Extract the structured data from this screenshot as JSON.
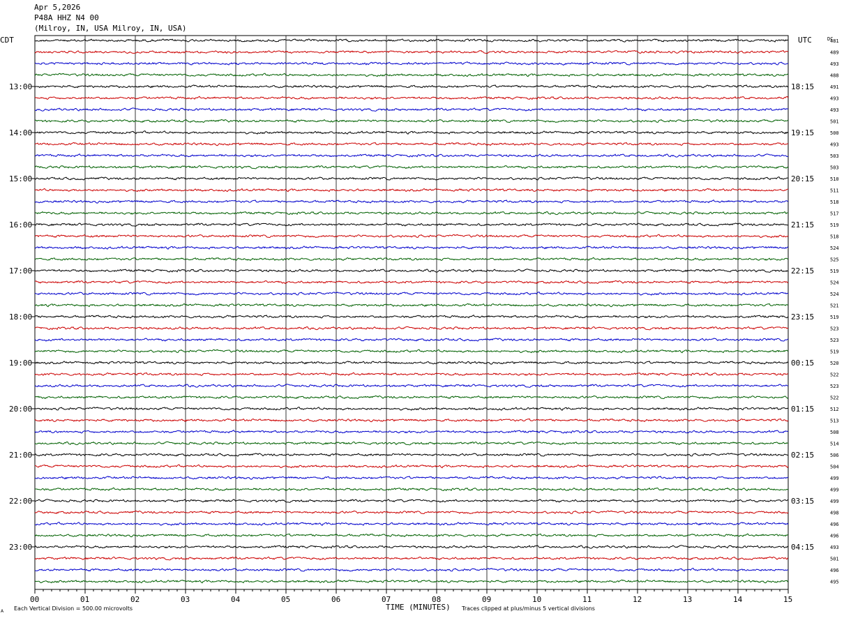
{
  "header": {
    "date": "Apr 5,2026",
    "station": "P48A HHZ N4 00",
    "location": "(Milroy, IN, USA Milroy, IN, USA)"
  },
  "left_tz": "CDT",
  "right_tz": "UTC",
  "dc_label": "DC",
  "footer": {
    "scale_text": "Each Vertical Division =  500.00 microvolts",
    "clip_text": "Traces clipped at plus/minus 5 vertical divisions",
    "corner_mark": "A"
  },
  "chart_data": {
    "type": "line",
    "title": "",
    "xlabel": "TIME (MINUTES)",
    "xlim": [
      0,
      15
    ],
    "x_ticks": [
      "00",
      "01",
      "02",
      "03",
      "04",
      "05",
      "06",
      "07",
      "08",
      "09",
      "10",
      "11",
      "12",
      "13",
      "14",
      "15"
    ],
    "trace_interval_minutes": 15,
    "trace_colors": [
      "#000000",
      "#cc0000",
      "#0000cc",
      "#006000"
    ],
    "left_hour_labels": [
      "13:00",
      "14:00",
      "15:00",
      "16:00",
      "17:00",
      "18:00",
      "19:00",
      "20:00",
      "21:00",
      "22:00",
      "23:00"
    ],
    "right_hour_labels": [
      "18:15",
      "19:15",
      "20:15",
      "21:15",
      "22:15",
      "23:15",
      "00:15",
      "01:15",
      "02:15",
      "03:15",
      "04:15"
    ],
    "dc_offsets": [
      481,
      489,
      493,
      488,
      491,
      493,
      493,
      501,
      500,
      493,
      503,
      503,
      510,
      511,
      518,
      517,
      519,
      518,
      524,
      525,
      519,
      524,
      524,
      521,
      519,
      523,
      523,
      519,
      520,
      522,
      523,
      522,
      512,
      513,
      508,
      514,
      506,
      504,
      499,
      499,
      499,
      498,
      496,
      496,
      493,
      501,
      496,
      495
    ]
  }
}
